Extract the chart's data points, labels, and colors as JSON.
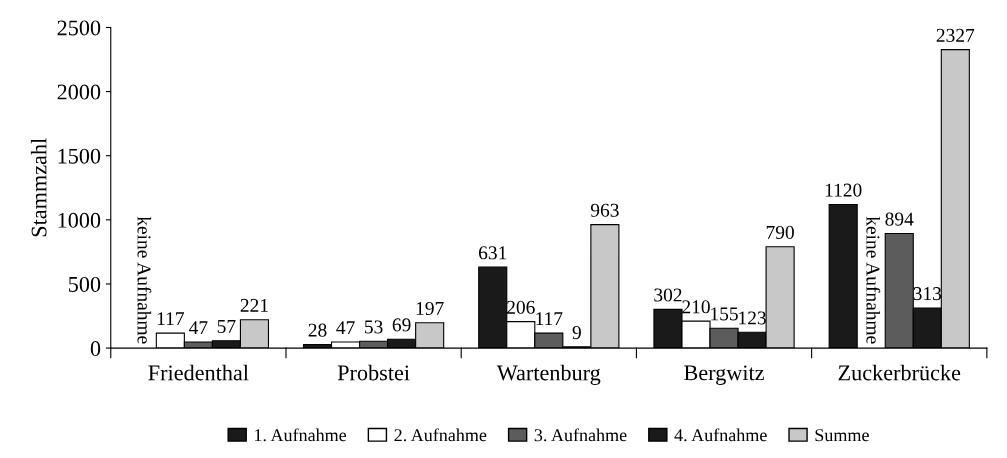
{
  "chart_data": {
    "type": "bar",
    "ylabel": "Stammzahl",
    "categories": [
      "Friedenthal",
      "Probstei",
      "Wartenburg",
      "Bergwitz",
      "Zuckerbrücke"
    ],
    "series": [
      {
        "name": "1. Aufnahme",
        "color": "#1a1a1a",
        "values": [
          null,
          28,
          631,
          302,
          1120
        ]
      },
      {
        "name": "2. Aufnahme",
        "color": "#ffffff",
        "values": [
          117,
          47,
          206,
          210,
          null
        ]
      },
      {
        "name": "3. Aufnahme",
        "color": "#5c5c5c",
        "values": [
          47,
          53,
          117,
          155,
          894
        ]
      },
      {
        "name": "4. Aufnahme",
        "color": "#1a1a1a",
        "values": [
          57,
          69,
          9,
          123,
          313
        ]
      },
      {
        "name": "Summe",
        "color": "#c8c8c8",
        "values": [
          221,
          197,
          963,
          790,
          2327
        ]
      }
    ],
    "ylim": [
      0,
      2500
    ],
    "yticks": [
      0,
      500,
      1000,
      1500,
      2000,
      2500
    ],
    "data_labels": true,
    "grid": false,
    "legend": "bottom",
    "annotations": [
      "keine Aufnahme",
      "keine Aufnahme"
    ]
  }
}
